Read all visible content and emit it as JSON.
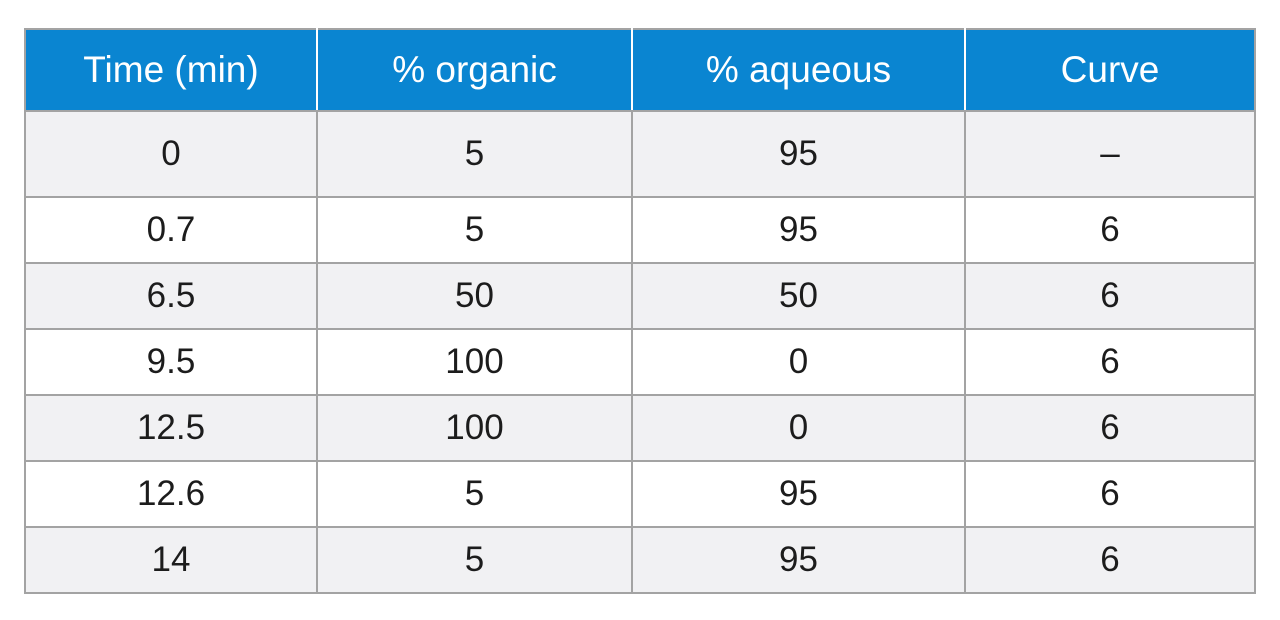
{
  "table": {
    "headers": [
      "Time (min)",
      "% organic",
      "% aqueous",
      "Curve"
    ],
    "rows": [
      [
        "0",
        "5",
        "95",
        "–"
      ],
      [
        "0.7",
        "5",
        "95",
        "6"
      ],
      [
        "6.5",
        "50",
        "50",
        "6"
      ],
      [
        "9.5",
        "100",
        "0",
        "6"
      ],
      [
        "12.5",
        "100",
        "0",
        "6"
      ],
      [
        "12.6",
        "5",
        "95",
        "6"
      ],
      [
        "14",
        "5",
        "95",
        "6"
      ]
    ]
  },
  "colors": {
    "header_background": "#0a85d1",
    "header_text": "#ffffff",
    "row_alt_background": "#f1f1f3",
    "grid_line": "#a3a3a3"
  }
}
